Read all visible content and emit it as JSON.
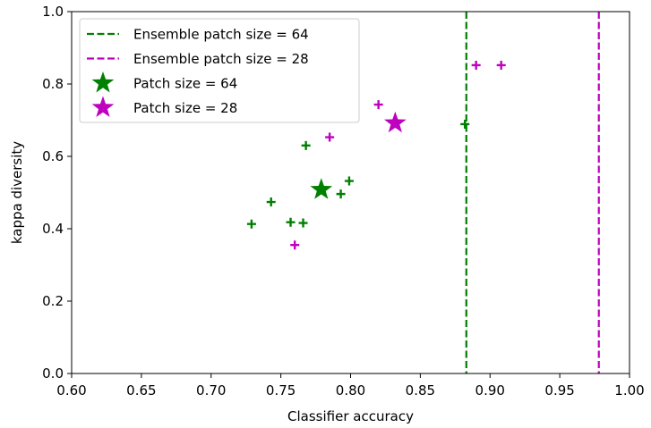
{
  "chart_data": {
    "type": "scatter",
    "xlabel": "Classifier accuracy",
    "ylabel": "kappa diversity",
    "xlim": [
      0.6,
      1.0
    ],
    "ylim": [
      0.0,
      1.0
    ],
    "x_ticks": [
      "0.60",
      "0.65",
      "0.70",
      "0.75",
      "0.80",
      "0.85",
      "0.90",
      "0.95",
      "1.00"
    ],
    "y_ticks": [
      "0.0",
      "0.2",
      "0.4",
      "0.6",
      "0.8",
      "1.0"
    ],
    "legend_position": "top-left",
    "series": [
      {
        "name": "Ensemble patch size = 64",
        "kind": "vline",
        "color": "#008000",
        "x": 0.883
      },
      {
        "name": "Ensemble patch size = 28",
        "kind": "vline",
        "color": "#bf00bf",
        "x": 0.978
      },
      {
        "name": "Patch size = 64",
        "kind": "star",
        "color": "#008000",
        "points": [
          {
            "x": 0.779,
            "y": 0.508
          }
        ]
      },
      {
        "name": "Patch size = 28",
        "kind": "star",
        "color": "#bf00bf",
        "points": [
          {
            "x": 0.832,
            "y": 0.692
          }
        ]
      },
      {
        "name": "",
        "kind": "plus",
        "color": "#008000",
        "points": [
          {
            "x": 0.729,
            "y": 0.413
          },
          {
            "x": 0.743,
            "y": 0.474
          },
          {
            "x": 0.757,
            "y": 0.418
          },
          {
            "x": 0.766,
            "y": 0.416
          },
          {
            "x": 0.768,
            "y": 0.63
          },
          {
            "x": 0.793,
            "y": 0.496
          },
          {
            "x": 0.799,
            "y": 0.532
          },
          {
            "x": 0.882,
            "y": 0.689
          }
        ]
      },
      {
        "name": "",
        "kind": "plus",
        "color": "#bf00bf",
        "points": [
          {
            "x": 0.76,
            "y": 0.355
          },
          {
            "x": 0.785,
            "y": 0.653
          },
          {
            "x": 0.82,
            "y": 0.743
          },
          {
            "x": 0.89,
            "y": 0.852
          },
          {
            "x": 0.908,
            "y": 0.852
          }
        ]
      }
    ]
  }
}
